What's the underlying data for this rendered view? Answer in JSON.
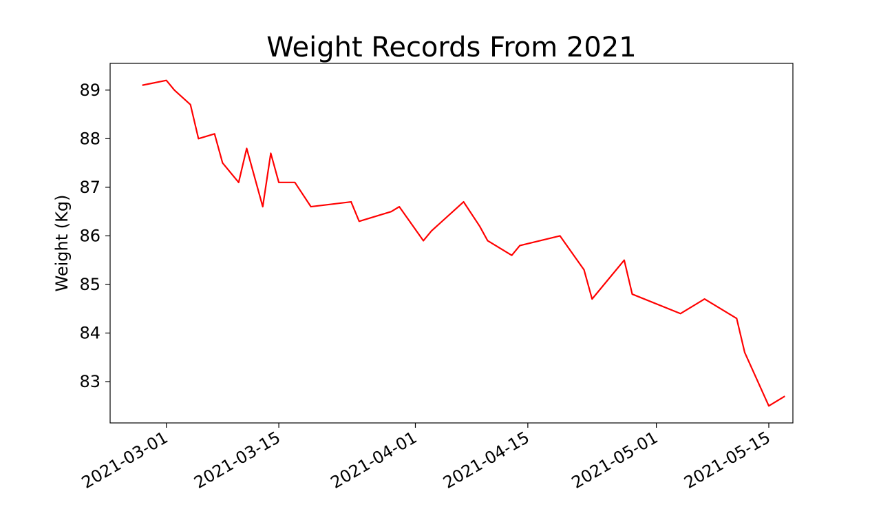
{
  "chart_data": {
    "type": "line",
    "title": "Weight Records From 2021",
    "xlabel": "",
    "ylabel": "Weight (Kg)",
    "x_type": "date",
    "xlim": [
      "2021-02-22",
      "2021-05-18"
    ],
    "ylim": [
      82.15,
      89.55
    ],
    "grid": false,
    "line_color": "#ff0000",
    "x_ticks": [
      "2021-03-01",
      "2021-03-15",
      "2021-04-01",
      "2021-04-15",
      "2021-05-01",
      "2021-05-15"
    ],
    "y_ticks": [
      83,
      84,
      85,
      86,
      87,
      88,
      89
    ],
    "series": [
      {
        "x": [
          "2021-02-26",
          "2021-03-01",
          "2021-03-02",
          "2021-03-04",
          "2021-03-05",
          "2021-03-07",
          "2021-03-08",
          "2021-03-10",
          "2021-03-11",
          "2021-03-13",
          "2021-03-14",
          "2021-03-15",
          "2021-03-17",
          "2021-03-19",
          "2021-03-24",
          "2021-03-25",
          "2021-03-29",
          "2021-03-30",
          "2021-04-02",
          "2021-04-03",
          "2021-04-07",
          "2021-04-09",
          "2021-04-10",
          "2021-04-13",
          "2021-04-14",
          "2021-04-19",
          "2021-04-22",
          "2021-04-23",
          "2021-04-27",
          "2021-04-28",
          "2021-05-04",
          "2021-05-07",
          "2021-05-11",
          "2021-05-12",
          "2021-05-15",
          "2021-05-17"
        ],
        "y": [
          89.1,
          89.2,
          89.0,
          88.7,
          88.0,
          88.1,
          87.5,
          87.1,
          87.8,
          86.6,
          87.7,
          87.1,
          87.1,
          86.6,
          86.7,
          86.3,
          86.5,
          86.6,
          85.9,
          86.1,
          86.7,
          86.2,
          85.9,
          85.6,
          85.8,
          86.0,
          85.3,
          84.7,
          85.5,
          84.8,
          84.4,
          84.7,
          84.3,
          83.6,
          82.5,
          82.7
        ]
      }
    ]
  }
}
